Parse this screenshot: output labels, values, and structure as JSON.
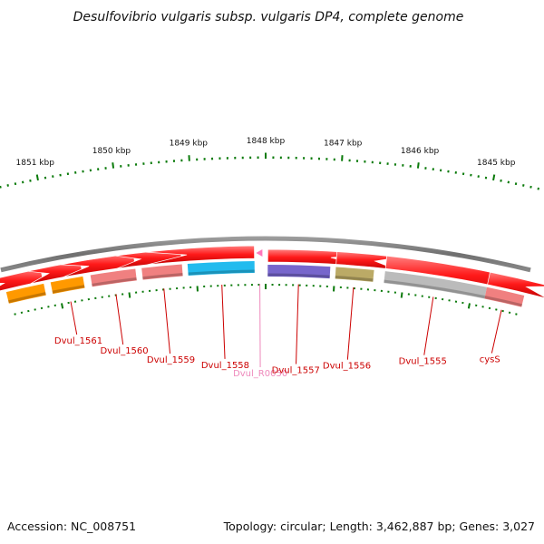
{
  "title": "Desulfovibrio vulgaris subsp. vulgaris DP4, complete genome",
  "footer": {
    "accession": "Accession: NC_008751",
    "topology": "Topology: circular; Length: 3,462,887 bp; Genes: 3,027"
  },
  "scale": {
    "view_start_kbp": 1851.75,
    "view_end_kbp": 1844.25,
    "ticks": [
      {
        "kbp": 1851,
        "label": "1851 kbp"
      },
      {
        "kbp": 1850,
        "label": "1850 kbp"
      },
      {
        "kbp": 1849,
        "label": "1849 kbp"
      },
      {
        "kbp": 1848,
        "label": "1848 kbp"
      },
      {
        "kbp": 1847,
        "label": "1847 kbp"
      },
      {
        "kbp": 1846,
        "label": "1846 kbp"
      },
      {
        "kbp": 1845,
        "label": "1845 kbp"
      }
    ]
  },
  "colors": {
    "tick": "#0a7a0a",
    "backbone": "#8c8c8c",
    "gene": "#ff1a1a",
    "gene_label": "#cc0000",
    "rna_label": "#ee88bb",
    "rna": "#ff77bb"
  },
  "genes": [
    {
      "name": "",
      "start": 1851.75,
      "end": 1851.2,
      "strand": "-",
      "cds_color": "#ff9900",
      "label_color": "#cc0000"
    },
    {
      "name": "Dvul_1561",
      "start": 1851.1,
      "end": 1850.63,
      "strand": "-",
      "cds_color": "#ff9900",
      "label_color": "#cc0000"
    },
    {
      "name": "Dvul_1560",
      "start": 1850.52,
      "end": 1849.87,
      "strand": "-",
      "cds_color": "#f08080",
      "label_color": "#cc0000"
    },
    {
      "name": "Dvul_1559",
      "start": 1849.78,
      "end": 1849.2,
      "strand": "-",
      "cds_color": "#f08080",
      "label_color": "#cc0000"
    },
    {
      "name": "Dvul_1558",
      "start": 1849.12,
      "end": 1848.16,
      "strand": "-",
      "cds_color": "#22bbee",
      "label_color": "#cc0000"
    },
    {
      "name": "Dvul_R0050",
      "start": 1848.12,
      "end": 1848.05,
      "strand": "-",
      "cds_color": "",
      "label_color": "#ee88bb",
      "rna": true
    },
    {
      "name": "Dvul_1557",
      "start": 1847.97,
      "end": 1847.07,
      "strand": "+",
      "cds_color": "#7766cc",
      "label_color": "#cc0000"
    },
    {
      "name": "Dvul_1556",
      "start": 1846.99,
      "end": 1846.44,
      "strand": "+",
      "cds_color": "#bbaa66",
      "label_color": "#cc0000"
    },
    {
      "name": "Dvul_1555",
      "start": 1846.28,
      "end": 1844.8,
      "strand": "+",
      "cds_color": "#bbbbbb",
      "label_color": "#cc0000"
    },
    {
      "name": "cysS",
      "start": 1844.8,
      "end": 1844.25,
      "strand": "+",
      "cds_color": "#f08080",
      "label_color": "#cc0000"
    }
  ]
}
